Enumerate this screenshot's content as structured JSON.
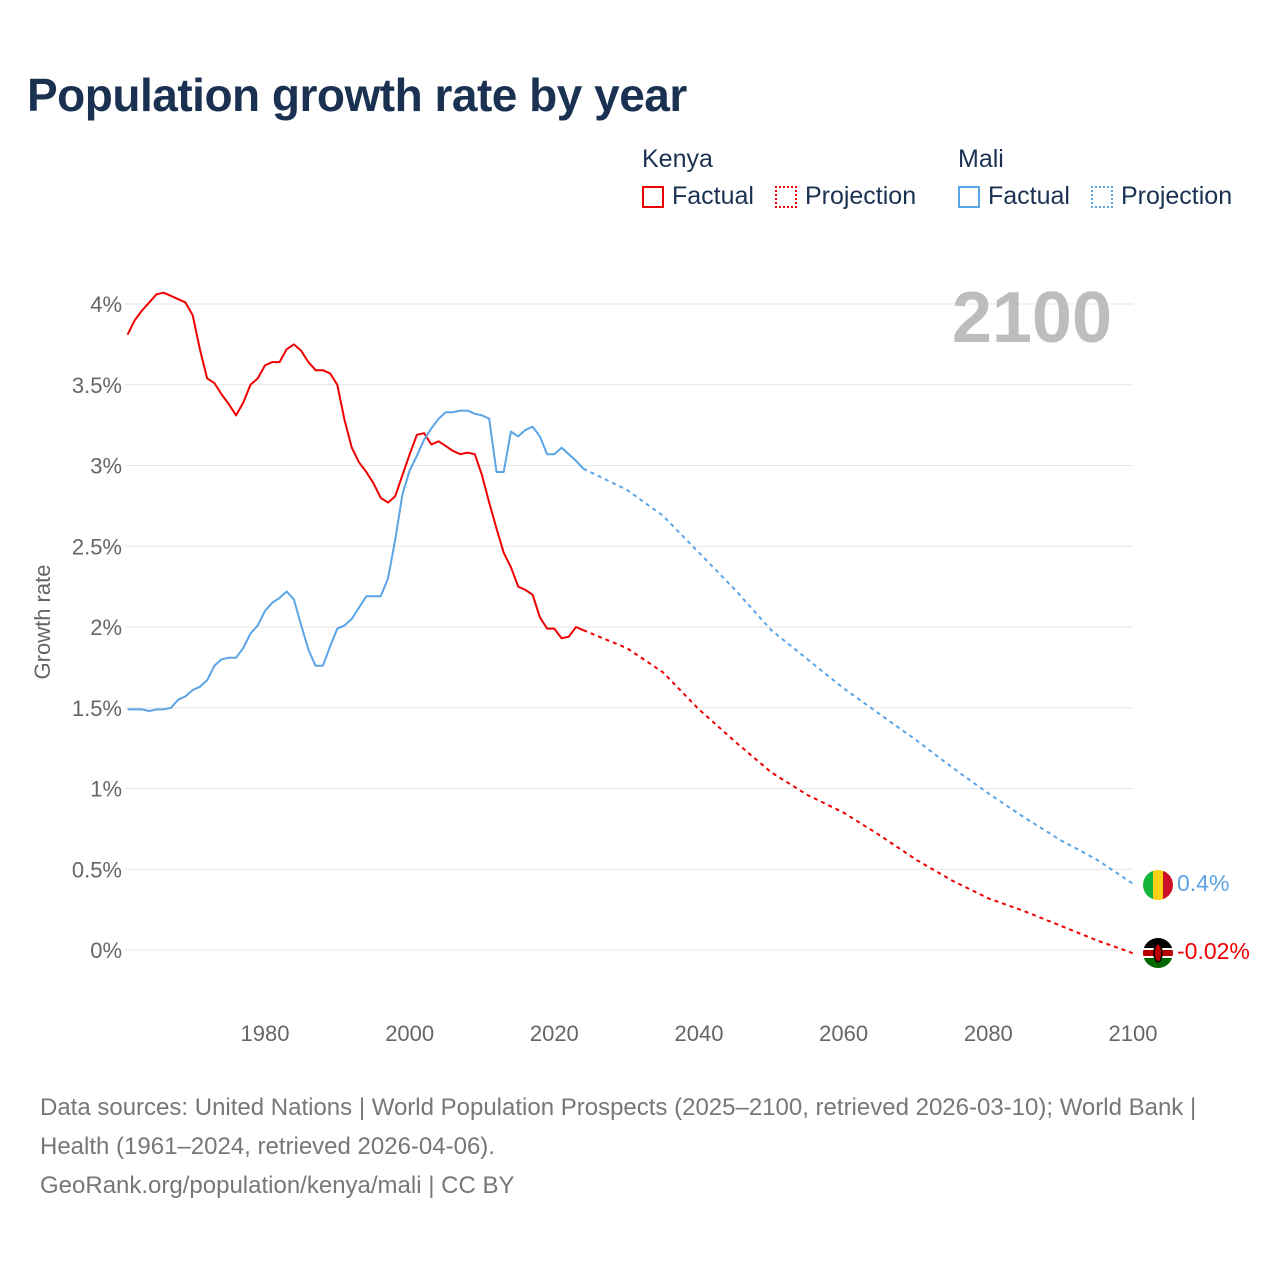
{
  "title": "Population growth rate by year",
  "legend": {
    "groups": [
      {
        "name": "Kenya",
        "color": "#ee0000",
        "factual": "Factual",
        "projection": "Projection"
      },
      {
        "name": "Mali",
        "color": "#5ba4e6",
        "factual": "Factual",
        "projection": "Projection"
      }
    ]
  },
  "year_label": "2100",
  "end_labels": {
    "mali": "0.4%",
    "kenya": "-0.02%"
  },
  "footer": {
    "sources": "Data sources: United Nations | World Population Prospects (2025–2100, retrieved 2026-03-10); World Bank | Health (1961–2024, retrieved 2026-04-06).",
    "link": "GeoRank.org/population/kenya/mali | CC BY"
  },
  "chart_data": {
    "type": "line",
    "title": "Population growth rate by year",
    "xlabel": "",
    "ylabel": "Growth rate",
    "xlim": [
      1961,
      2100
    ],
    "ylim": [
      -0.3,
      4.2
    ],
    "grid": true,
    "x_ticks": [
      1980,
      2000,
      2020,
      2040,
      2060,
      2080,
      2100
    ],
    "x_tick_labels": [
      "1980",
      "2000",
      "2020",
      "2040",
      "2060",
      "2080",
      "2100"
    ],
    "y_ticks": [
      0,
      0.5,
      1,
      1.5,
      2,
      2.5,
      3,
      3.5,
      4
    ],
    "y_tick_labels": [
      "0%",
      "0.5%",
      "1%",
      "1.5%",
      "2%",
      "2.5%",
      "3%",
      "3.5%",
      "4%"
    ],
    "series": [
      {
        "name": "Kenya Factual",
        "color": "#ee0000",
        "dashed": false,
        "start": 1961,
        "values": [
          3.81,
          3.9,
          3.96,
          4.01,
          4.06,
          4.07,
          4.05,
          4.03,
          4.01,
          3.93,
          3.72,
          3.54,
          3.51,
          3.44,
          3.38,
          3.31,
          3.39,
          3.5,
          3.54,
          3.62,
          3.64,
          3.64,
          3.72,
          3.75,
          3.71,
          3.64,
          3.59,
          3.59,
          3.57,
          3.5,
          3.28,
          3.11,
          3.02,
          2.96,
          2.89,
          2.8,
          2.77,
          2.81,
          2.94,
          3.07,
          3.19,
          3.2,
          3.13,
          3.15,
          3.12,
          3.09,
          3.07,
          3.08,
          3.07,
          2.94,
          2.77,
          2.61,
          2.46,
          2.37,
          2.25,
          2.23,
          2.2,
          2.06,
          1.99,
          1.99,
          1.93,
          1.94,
          2.0,
          1.98
        ]
      },
      {
        "name": "Kenya Projection",
        "color": "#ee0000",
        "dashed": true,
        "x": [
          2024,
          2030,
          2035,
          2040,
          2045,
          2050,
          2055,
          2060,
          2065,
          2070,
          2075,
          2080,
          2085,
          2090,
          2095,
          2100
        ],
        "values": [
          1.98,
          1.87,
          1.72,
          1.49,
          1.29,
          1.1,
          0.96,
          0.85,
          0.71,
          0.56,
          0.43,
          0.32,
          0.24,
          0.15,
          0.06,
          -0.02
        ]
      },
      {
        "name": "Mali Factual",
        "color": "#5ba4e6",
        "dashed": false,
        "start": 1961,
        "values": [
          1.49,
          1.49,
          1.49,
          1.48,
          1.49,
          1.49,
          1.5,
          1.55,
          1.57,
          1.61,
          1.63,
          1.67,
          1.76,
          1.8,
          1.81,
          1.81,
          1.87,
          1.96,
          2.01,
          2.1,
          2.15,
          2.18,
          2.22,
          2.17,
          2.01,
          1.86,
          1.76,
          1.76,
          1.88,
          1.99,
          2.01,
          2.05,
          2.12,
          2.19,
          2.19,
          2.19,
          2.3,
          2.54,
          2.82,
          2.97,
          3.06,
          3.16,
          3.23,
          3.29,
          3.33,
          3.33,
          3.34,
          3.34,
          3.32,
          3.31,
          3.29,
          2.96,
          2.96,
          3.21,
          3.18,
          3.22,
          3.24,
          3.18,
          3.07,
          3.07,
          3.11,
          3.07,
          3.03,
          2.98
        ]
      },
      {
        "name": "Mali Projection",
        "color": "#5ba4e6",
        "dashed": true,
        "x": [
          2024,
          2030,
          2035,
          2040,
          2045,
          2050,
          2055,
          2060,
          2065,
          2070,
          2075,
          2080,
          2085,
          2090,
          2095,
          2100
        ],
        "values": [
          2.98,
          2.85,
          2.69,
          2.46,
          2.23,
          1.98,
          1.8,
          1.62,
          1.46,
          1.3,
          1.13,
          0.97,
          0.82,
          0.68,
          0.56,
          0.41
        ]
      }
    ]
  }
}
